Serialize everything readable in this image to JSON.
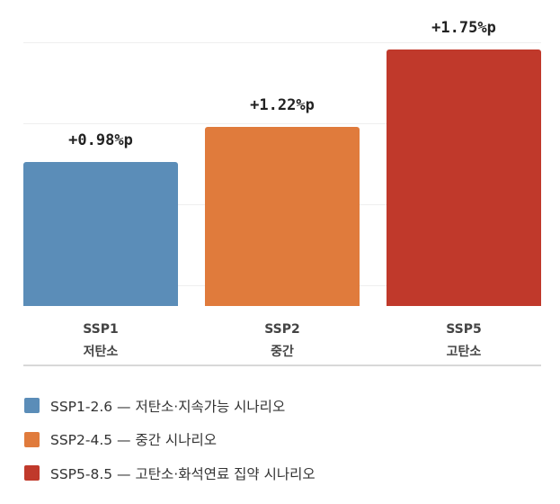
{
  "chart_data": {
    "type": "bar",
    "categories": [
      "SSP1",
      "SSP2",
      "SSP5"
    ],
    "category_sublabels": [
      "저탄소",
      "중간",
      "고탄소"
    ],
    "values": [
      0.98,
      1.22,
      1.75
    ],
    "data_labels": [
      "+0.98%p",
      "+1.22%p",
      "+1.75%p"
    ],
    "colors": [
      "#5b8db8",
      "#e07b3c",
      "#c0392b"
    ],
    "grid": true,
    "legend_placement": "bottom",
    "legend": [
      {
        "label": "SSP1-2.6 — 저탄소·지속가능 시나리오",
        "color": "#5b8db8"
      },
      {
        "label": "SSP2-4.5 — 중간 시나리오",
        "color": "#e07b3c"
      },
      {
        "label": "SSP5-8.5 — 고탄소·화석연료 집약 시나리오",
        "color": "#c0392b"
      }
    ]
  }
}
